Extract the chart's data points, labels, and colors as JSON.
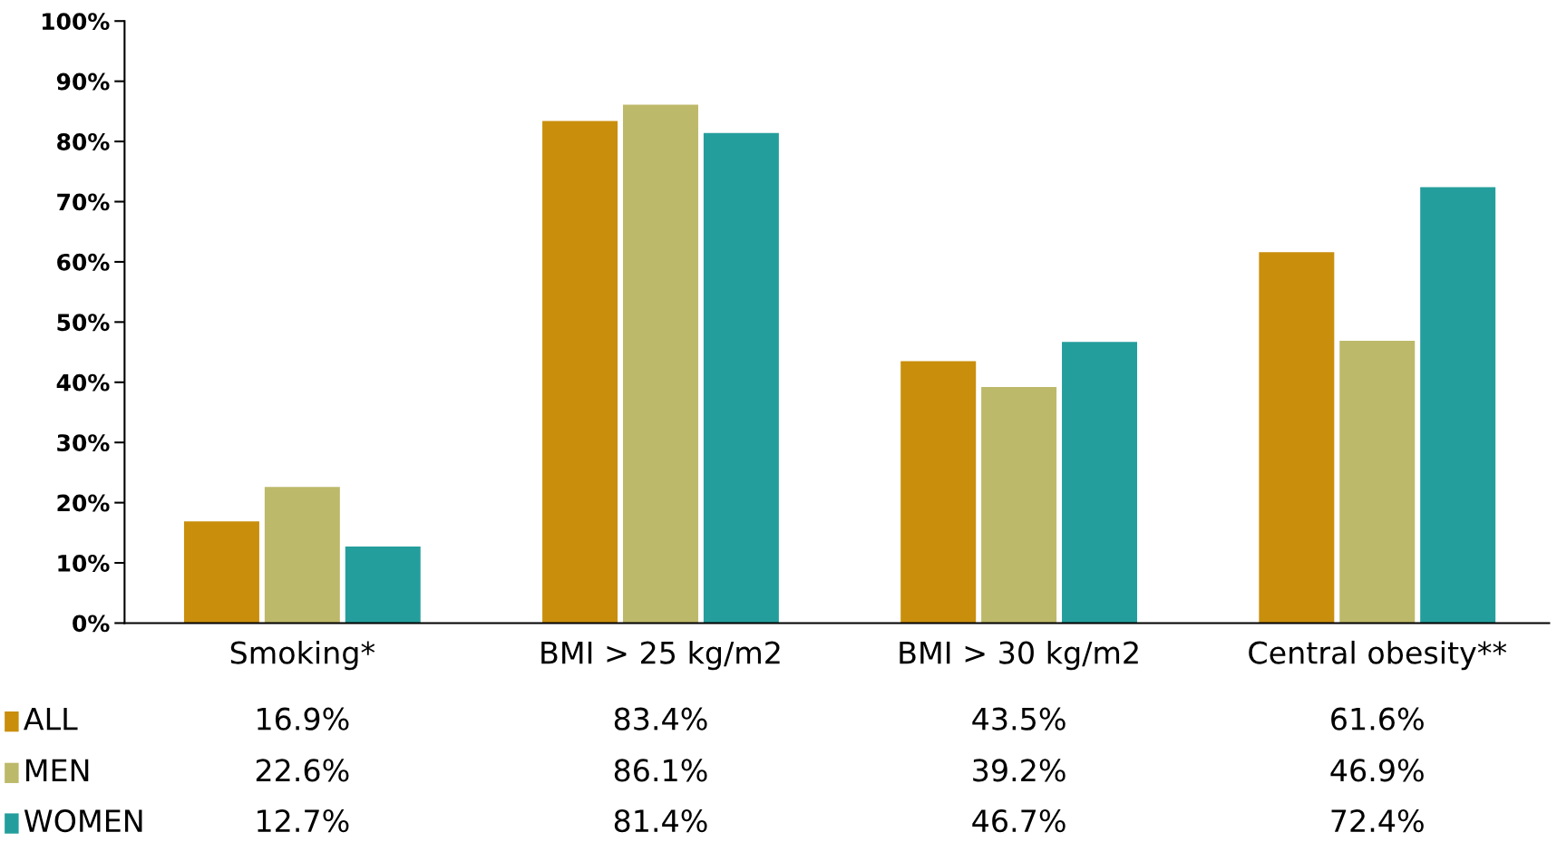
{
  "chart_data": {
    "type": "bar",
    "categories": [
      "Smoking*",
      "BMI > 25 kg/m2",
      "BMI > 30 kg/m2",
      "Central obesity**"
    ],
    "series": [
      {
        "name": "ALL",
        "color": "#c98e0c",
        "values": [
          16.9,
          83.4,
          43.5,
          61.6
        ],
        "value_labels": [
          "16.9%",
          "83.4%",
          "43.5%",
          "61.6%"
        ]
      },
      {
        "name": "MEN",
        "color": "#bdb96a",
        "values": [
          22.6,
          86.1,
          39.2,
          46.9
        ],
        "value_labels": [
          "22.6%",
          "86.1%",
          "39.2%",
          "46.9%"
        ]
      },
      {
        "name": "WOMEN",
        "color": "#249e9c",
        "values": [
          12.7,
          81.4,
          46.7,
          72.4
        ],
        "value_labels": [
          "12.7%",
          "81.4%",
          "46.7%",
          "72.4%"
        ]
      }
    ],
    "ylim": [
      0,
      100
    ],
    "yticks": [
      {
        "value": 0,
        "label": "0%"
      },
      {
        "value": 10,
        "label": "10%"
      },
      {
        "value": 20,
        "label": "20%"
      },
      {
        "value": 30,
        "label": "30%"
      },
      {
        "value": 40,
        "label": "40%"
      },
      {
        "value": 50,
        "label": "50%"
      },
      {
        "value": 60,
        "label": "60%"
      },
      {
        "value": 70,
        "label": "70%"
      },
      {
        "value": 80,
        "label": "80%"
      },
      {
        "value": 90,
        "label": "90%"
      },
      {
        "value": 100,
        "label": "100%"
      }
    ],
    "grid": false,
    "legend": "bottom left"
  }
}
